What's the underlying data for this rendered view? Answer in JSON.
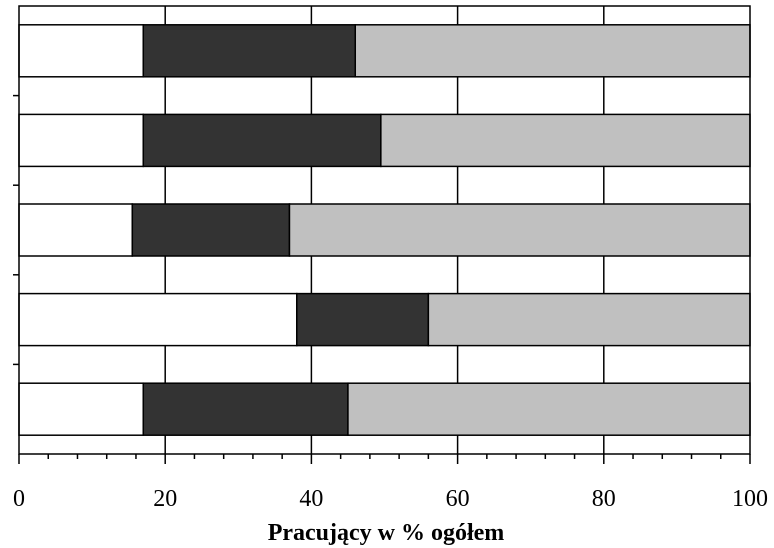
{
  "chart_data": {
    "type": "bar",
    "orientation": "horizontal",
    "stacked": true,
    "title": "",
    "xlabel": "Pracujący w % ogółem",
    "ylabel": "",
    "xlim": [
      0,
      100
    ],
    "x_major_ticks": [
      0,
      20,
      40,
      60,
      80,
      100
    ],
    "x_minor_step": 4,
    "grid": "vertical",
    "legend": "none",
    "categories": [
      "",
      "",
      "",
      "",
      ""
    ],
    "series": [
      {
        "values": [
          17,
          17,
          15.5,
          38,
          17
        ],
        "color": "#ffffff"
      },
      {
        "values": [
          29,
          32.5,
          21.5,
          18,
          28
        ],
        "color": "#333333"
      },
      {
        "values": [
          54,
          50.5,
          63,
          44,
          55
        ],
        "color": "#c0c0c0"
      }
    ],
    "tick_labels": [
      "0",
      "20",
      "40",
      "60",
      "80",
      "100"
    ]
  }
}
